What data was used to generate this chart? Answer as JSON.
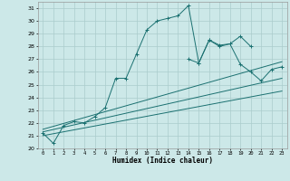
{
  "title": "",
  "xlabel": "Humidex (Indice chaleur)",
  "background_color": "#cce8e8",
  "grid_color": "#aacccc",
  "line_color": "#1a7070",
  "xlim": [
    -0.5,
    23.5
  ],
  "ylim": [
    20,
    31.5
  ],
  "xticks": [
    0,
    1,
    2,
    3,
    4,
    5,
    6,
    7,
    8,
    9,
    10,
    11,
    12,
    13,
    14,
    15,
    16,
    17,
    18,
    19,
    20,
    21,
    22,
    23
  ],
  "yticks": [
    20,
    21,
    22,
    23,
    24,
    25,
    26,
    27,
    28,
    29,
    30,
    31
  ],
  "series": [
    {
      "x": [
        0,
        1,
        2,
        3,
        4,
        5,
        6,
        7,
        8,
        9,
        10,
        11,
        12,
        13,
        14,
        15,
        16,
        17,
        18,
        19,
        20
      ],
      "y": [
        21.2,
        20.4,
        21.8,
        22.1,
        22.0,
        22.5,
        23.2,
        25.5,
        25.5,
        27.4,
        29.3,
        30.0,
        30.2,
        30.4,
        31.2,
        26.7,
        28.5,
        28.1,
        28.2,
        28.8,
        28.0
      ],
      "marker": true
    },
    {
      "x": [
        14,
        15,
        16,
        17,
        18,
        19,
        20,
        21,
        22,
        23
      ],
      "y": [
        27.0,
        26.7,
        28.5,
        28.0,
        28.2,
        26.6,
        26.0,
        25.3,
        26.2,
        26.4
      ],
      "marker": true
    },
    {
      "x": [
        0,
        23
      ],
      "y": [
        21.5,
        26.8
      ],
      "marker": false
    },
    {
      "x": [
        0,
        23
      ],
      "y": [
        21.3,
        25.5
      ],
      "marker": false
    },
    {
      "x": [
        0,
        23
      ],
      "y": [
        21.0,
        24.5
      ],
      "marker": false
    }
  ]
}
